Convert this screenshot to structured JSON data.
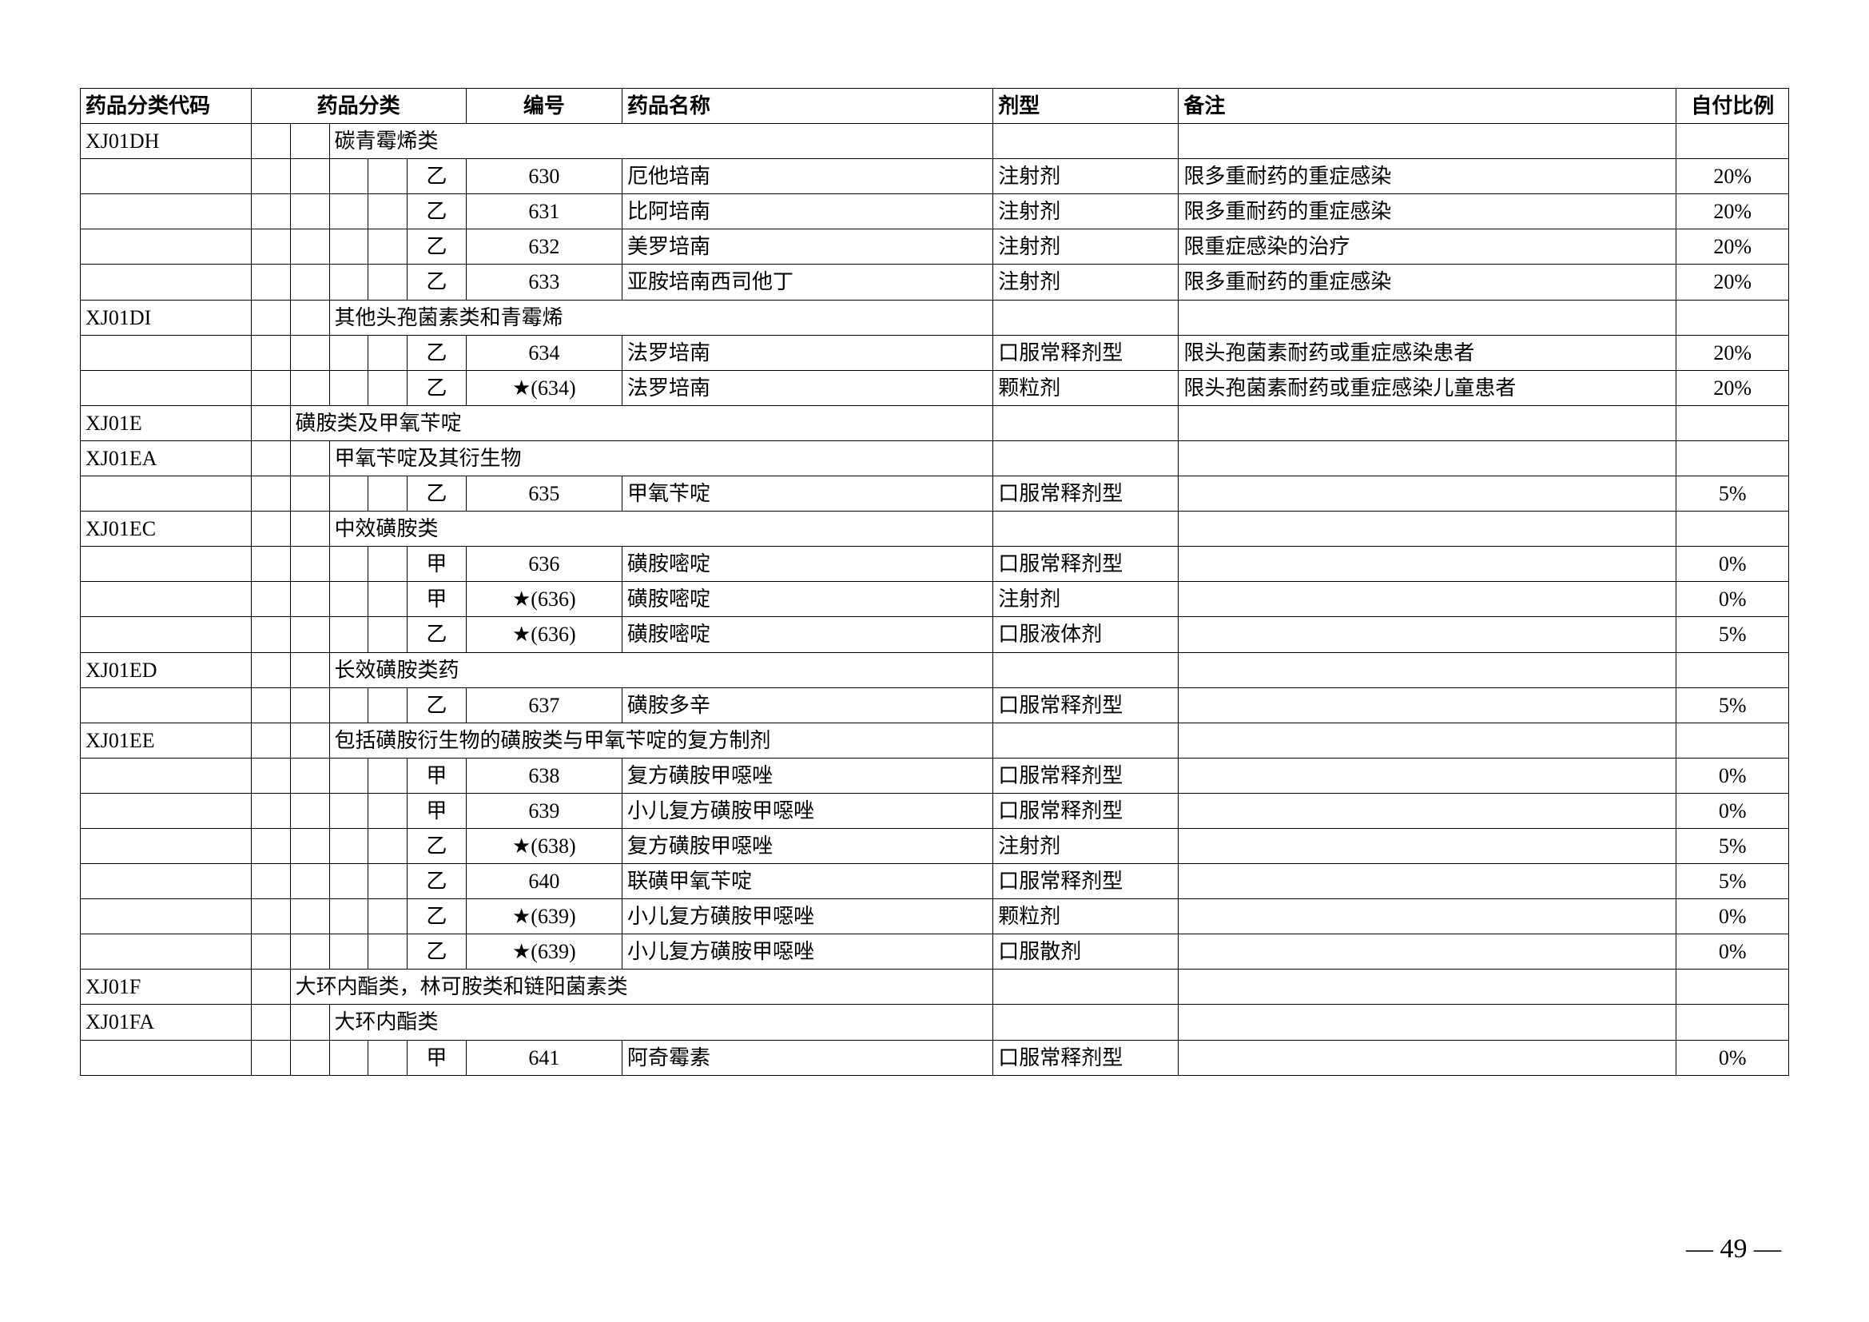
{
  "pageNumber": "— 49 —",
  "headers": {
    "code": "药品分类代码",
    "category": "药品分类",
    "number": "编号",
    "name": "药品名称",
    "form": "剂型",
    "note": "备注",
    "ratio": "自付比例"
  },
  "rows": [
    {
      "type": "cat",
      "code": "XJ01DH",
      "catStart": 3,
      "catText": "碳青霉烯类"
    },
    {
      "type": "data",
      "cat5": "乙",
      "num": "630",
      "name": "厄他培南",
      "form": "注射剂",
      "note": "限多重耐药的重症感染",
      "ratio": "20%"
    },
    {
      "type": "data",
      "cat5": "乙",
      "num": "631",
      "name": "比阿培南",
      "form": "注射剂",
      "note": "限多重耐药的重症感染",
      "ratio": "20%"
    },
    {
      "type": "data",
      "cat5": "乙",
      "num": "632",
      "name": "美罗培南",
      "form": "注射剂",
      "note": "限重症感染的治疗",
      "ratio": "20%"
    },
    {
      "type": "data",
      "cat5": "乙",
      "num": "633",
      "name": "亚胺培南西司他丁",
      "form": "注射剂",
      "note": "限多重耐药的重症感染",
      "ratio": "20%"
    },
    {
      "type": "cat",
      "code": "XJ01DI",
      "catStart": 3,
      "catText": "其他头孢菌素类和青霉烯"
    },
    {
      "type": "data",
      "cat5": "乙",
      "num": "634",
      "name": "法罗培南",
      "form": "口服常释剂型",
      "note": "限头孢菌素耐药或重症感染患者",
      "ratio": "20%"
    },
    {
      "type": "data",
      "cat5": "乙",
      "num": "★(634)",
      "name": "法罗培南",
      "form": "颗粒剂",
      "note": "限头孢菌素耐药或重症感染儿童患者",
      "ratio": "20%"
    },
    {
      "type": "cat",
      "code": "XJ01E",
      "catStart": 2,
      "catText": "磺胺类及甲氧苄啶"
    },
    {
      "type": "cat",
      "code": "XJ01EA",
      "catStart": 3,
      "catText": "甲氧苄啶及其衍生物"
    },
    {
      "type": "data",
      "cat5": "乙",
      "num": "635",
      "name": "甲氧苄啶",
      "form": "口服常释剂型",
      "note": "",
      "ratio": "5%"
    },
    {
      "type": "cat",
      "code": "XJ01EC",
      "catStart": 3,
      "catText": "中效磺胺类"
    },
    {
      "type": "data",
      "cat5": "甲",
      "num": "636",
      "name": "磺胺嘧啶",
      "form": "口服常释剂型",
      "note": "",
      "ratio": "0%"
    },
    {
      "type": "data",
      "cat5": "甲",
      "num": "★(636)",
      "name": "磺胺嘧啶",
      "form": "注射剂",
      "note": "",
      "ratio": "0%"
    },
    {
      "type": "data",
      "cat5": "乙",
      "num": "★(636)",
      "name": "磺胺嘧啶",
      "form": "口服液体剂",
      "note": "",
      "ratio": "5%"
    },
    {
      "type": "cat",
      "code": "XJ01ED",
      "catStart": 3,
      "catText": "长效磺胺类药"
    },
    {
      "type": "data",
      "cat5": "乙",
      "num": "637",
      "name": "磺胺多辛",
      "form": "口服常释剂型",
      "note": "",
      "ratio": "5%"
    },
    {
      "type": "cat",
      "code": "XJ01EE",
      "catStart": 3,
      "catText": "包括磺胺衍生物的磺胺类与甲氧苄啶的复方制剂"
    },
    {
      "type": "data",
      "cat5": "甲",
      "num": "638",
      "name": "复方磺胺甲噁唑",
      "form": "口服常释剂型",
      "note": "",
      "ratio": "0%"
    },
    {
      "type": "data",
      "cat5": "甲",
      "num": "639",
      "name": "小儿复方磺胺甲噁唑",
      "form": "口服常释剂型",
      "note": "",
      "ratio": "0%"
    },
    {
      "type": "data",
      "cat5": "乙",
      "num": "★(638)",
      "name": "复方磺胺甲噁唑",
      "form": "注射剂",
      "note": "",
      "ratio": "5%"
    },
    {
      "type": "data",
      "cat5": "乙",
      "num": "640",
      "name": "联磺甲氧苄啶",
      "form": "口服常释剂型",
      "note": "",
      "ratio": "5%"
    },
    {
      "type": "data",
      "cat5": "乙",
      "num": "★(639)",
      "name": "小儿复方磺胺甲噁唑",
      "form": "颗粒剂",
      "note": "",
      "ratio": "0%"
    },
    {
      "type": "data",
      "cat5": "乙",
      "num": "★(639)",
      "name": "小儿复方磺胺甲噁唑",
      "form": "口服散剂",
      "note": "",
      "ratio": "0%"
    },
    {
      "type": "cat",
      "code": "XJ01F",
      "catStart": 2,
      "catText": "大环内酯类，林可胺类和链阳菌素类"
    },
    {
      "type": "cat",
      "code": "XJ01FA",
      "catStart": 3,
      "catText": "大环内酯类"
    },
    {
      "type": "data",
      "cat5": "甲",
      "num": "641",
      "name": "阿奇霉素",
      "form": "口服常释剂型",
      "note": "",
      "ratio": "0%"
    }
  ]
}
